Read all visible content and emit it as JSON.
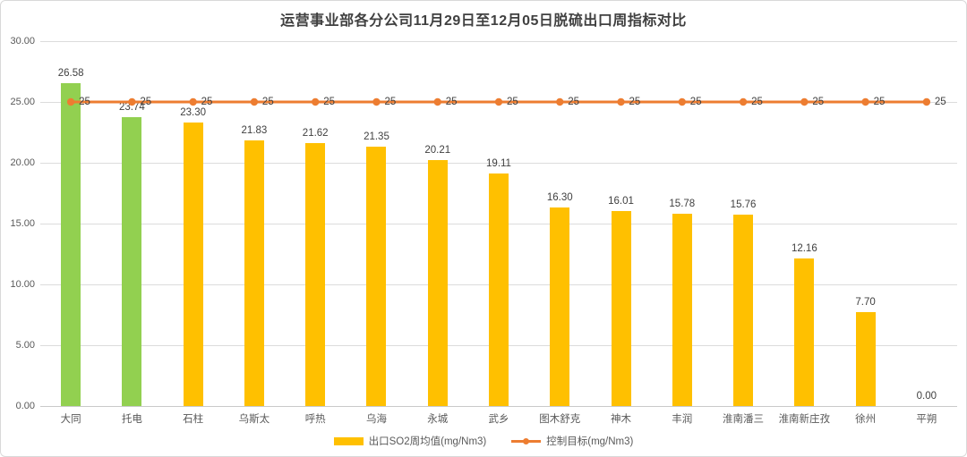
{
  "title": "运营事业部各分公司11月29日至12月05日脱硫出口周指标对比",
  "chart_data": {
    "type": "bar",
    "categories": [
      "大同",
      "托电",
      "石柱",
      "乌斯太",
      "呼热",
      "乌海",
      "永城",
      "武乡",
      "图木舒克",
      "神木",
      "丰润",
      "淮南潘三",
      "淮南新庄孜",
      "徐州",
      "平朔"
    ],
    "series": [
      {
        "name": "出口SO2周均值(mg/Nm3)",
        "type": "bar",
        "values": [
          26.58,
          23.74,
          23.3,
          21.83,
          21.62,
          21.35,
          20.21,
          19.11,
          16.3,
          16.01,
          15.78,
          15.76,
          12.16,
          7.7,
          0.0
        ],
        "labels": [
          "26.58",
          "23.74",
          "23.30",
          "21.83",
          "21.62",
          "21.35",
          "20.21",
          "19.11",
          "16.30",
          "16.01",
          "15.78",
          "15.76",
          "12.16",
          "7.70",
          "0.00"
        ],
        "point_colors": [
          "#92D050",
          "#92D050",
          "#FFC000",
          "#FFC000",
          "#FFC000",
          "#FFC000",
          "#FFC000",
          "#FFC000",
          "#FFC000",
          "#FFC000",
          "#FFC000",
          "#FFC000",
          "#FFC000",
          "#FFC000",
          "#FFC000"
        ]
      },
      {
        "name": "控制目标(mg/Nm3)",
        "type": "line",
        "values": [
          25,
          25,
          25,
          25,
          25,
          25,
          25,
          25,
          25,
          25,
          25,
          25,
          25,
          25,
          25
        ],
        "labels": [
          "25",
          "25",
          "25",
          "25",
          "25",
          "25",
          "25",
          "25",
          "25",
          "25",
          "25",
          "25",
          "25",
          "25",
          "25"
        ],
        "color": "#ED7D31"
      }
    ],
    "ylim": [
      0,
      30
    ],
    "ytick_step": 5,
    "ytick_labels": [
      "0.00",
      "5.00",
      "10.00",
      "15.00",
      "20.00",
      "25.00",
      "30.00"
    ],
    "grid": true,
    "legend_position": "bottom"
  },
  "colors": {
    "bar_default": "#FFC000",
    "bar_highlight": "#92D050",
    "line": "#ED7D31",
    "grid": "#DCDCDC",
    "axis_text": "#595959",
    "label_text": "#404040",
    "title_text": "#404040"
  }
}
